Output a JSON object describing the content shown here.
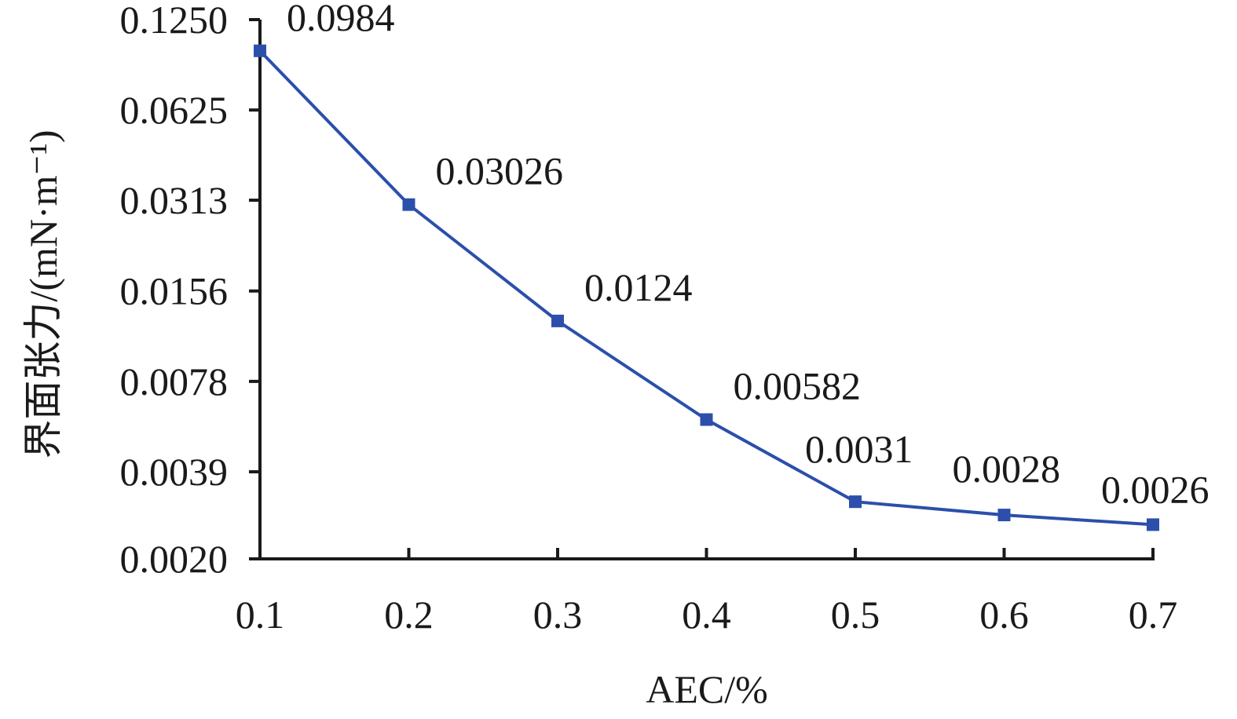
{
  "chart_data": {
    "type": "line",
    "x": [
      0.1,
      0.2,
      0.3,
      0.4,
      0.5,
      0.6,
      0.7
    ],
    "series": [
      {
        "values": [
          0.0984,
          0.03026,
          0.0124,
          0.00582,
          0.0031,
          0.0028,
          0.0026
        ],
        "data_labels": [
          "0.0984",
          "0.03026",
          "0.0124",
          "0.00582",
          "0.0031",
          "0.0028",
          "0.0026"
        ],
        "color": "#2b4fab"
      }
    ],
    "x_ticks": [
      "0.1",
      "0.2",
      "0.3",
      "0.4",
      "0.5",
      "0.6",
      "0.7"
    ],
    "y_ticks": [
      {
        "value": 0.002,
        "label": "0.0020"
      },
      {
        "value": 0.0039,
        "label": "0.0039"
      },
      {
        "value": 0.0078,
        "label": "0.0078"
      },
      {
        "value": 0.0156,
        "label": "0.0156"
      },
      {
        "value": 0.0313,
        "label": "0.0313"
      },
      {
        "value": 0.0625,
        "label": "0.0625"
      },
      {
        "value": 0.125,
        "label": "0.1250"
      }
    ],
    "xlabel": "AEC/%",
    "ylabel": "界面张力/(mN·m⁻¹)",
    "xlim": [
      0.1,
      0.7
    ],
    "ylim": [
      0.002,
      0.125
    ],
    "yscale": "log2",
    "grid": false,
    "legend": "none"
  }
}
